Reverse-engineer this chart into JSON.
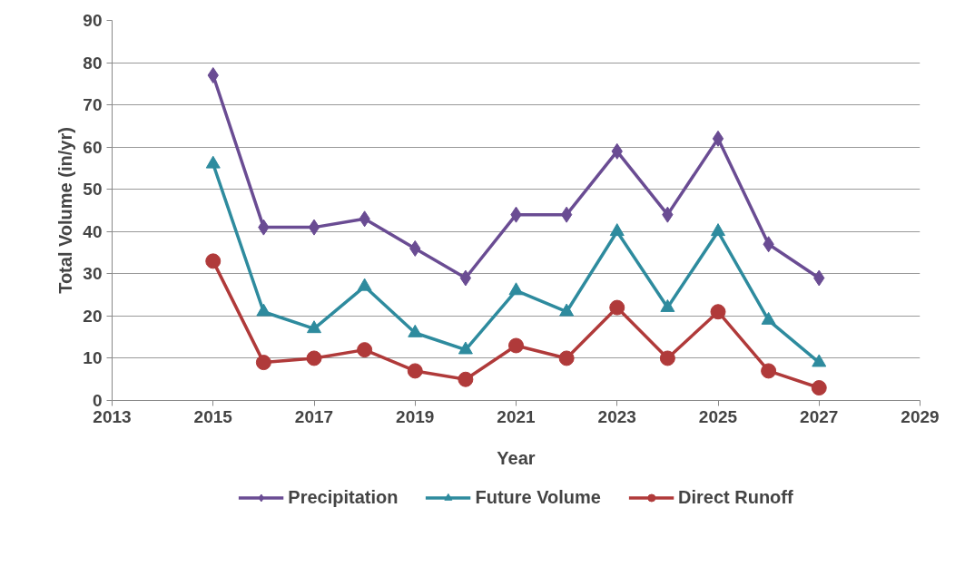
{
  "chart_data": {
    "type": "line",
    "xlabel": "Year",
    "ylabel": "Total Volume (in/yr)",
    "x": [
      2015,
      2016,
      2017,
      2018,
      2019,
      2020,
      2021,
      2022,
      2023,
      2024,
      2025,
      2026,
      2027
    ],
    "series": [
      {
        "name": "Precipitation",
        "color": "#6a4c93",
        "marker": "diamond",
        "values": [
          77,
          41,
          41,
          43,
          36,
          29,
          44,
          44,
          59,
          44,
          62,
          37,
          29
        ]
      },
      {
        "name": "Future Volume",
        "color": "#2e8b9e",
        "marker": "triangle",
        "values": [
          56,
          21,
          17,
          27,
          16,
          12,
          26,
          21,
          40,
          22,
          40,
          19,
          9
        ]
      },
      {
        "name": "Direct Runoff",
        "color": "#b03a3a",
        "marker": "circle",
        "values": [
          33,
          9,
          10,
          12,
          7,
          5,
          13,
          10,
          22,
          10,
          21,
          7,
          3
        ]
      }
    ],
    "xlim": [
      2013,
      2029
    ],
    "xticks": [
      2013,
      2015,
      2017,
      2019,
      2021,
      2023,
      2025,
      2027,
      2029
    ],
    "ylim": [
      0,
      90
    ],
    "yticks": [
      0,
      10,
      20,
      30,
      40,
      50,
      60,
      70,
      80,
      90
    ],
    "grid": "y",
    "legend": "bottom",
    "line_style": "solid"
  }
}
